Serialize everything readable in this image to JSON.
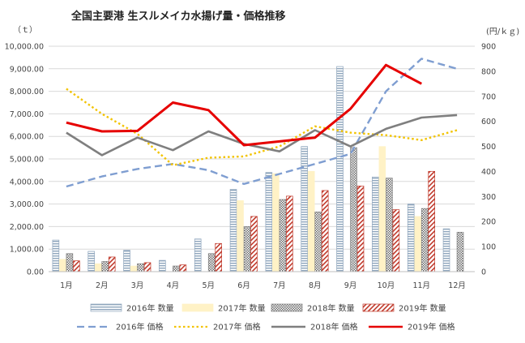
{
  "chart_data": {
    "type": "bar",
    "title": "全国主要港 生スルメイカ水揚げ量・価格推移",
    "y_left_unit": "（ｔ）",
    "y_right_unit": "(円/ｋｇ)",
    "categories": [
      "1月",
      "2月",
      "3月",
      "4月",
      "5月",
      "6月",
      "7月",
      "8月",
      "9月",
      "10月",
      "11月",
      "12月"
    ],
    "y_left_ticks": [
      "0.00",
      "1,000.00",
      "2,000.00",
      "3,000.00",
      "4,000.00",
      "5,000.00",
      "6,000.00",
      "7,000.00",
      "8,000.00",
      "9,000.00",
      "10,000.00"
    ],
    "y_right_ticks": [
      "0",
      "100",
      "200",
      "300",
      "400",
      "500",
      "600",
      "700",
      "800",
      "900"
    ],
    "ylim_left": [
      0,
      10000
    ],
    "ylim_right": [
      0,
      900
    ],
    "bar_series": [
      {
        "name": "2016年 数量",
        "color": "#8fa6bd",
        "pattern": "hstripe",
        "values": [
          1400,
          900,
          950,
          500,
          1450,
          3650,
          4400,
          5550,
          9100,
          4200,
          3000,
          1900
        ]
      },
      {
        "name": "2017年 数量",
        "color": "#fff2c6",
        "pattern": "solid",
        "values": [
          550,
          350,
          250,
          0,
          0,
          3150,
          4350,
          4450,
          0,
          5550,
          2450,
          0
        ]
      },
      {
        "name": "2018年 数量",
        "color": "#7f7f7f",
        "pattern": "cross",
        "values": [
          800,
          450,
          350,
          250,
          800,
          2000,
          3200,
          2650,
          5500,
          4150,
          2800,
          1750
        ]
      },
      {
        "name": "2019年 数量",
        "color": "#c0392b",
        "pattern": "diag",
        "values": [
          480,
          650,
          400,
          300,
          1250,
          2450,
          3350,
          3600,
          3800,
          2750,
          4450,
          null
        ]
      }
    ],
    "line_series": [
      {
        "name": "2016年 価格",
        "color": "#7f9ed1",
        "dash": "dashed",
        "values": [
          340,
          380,
          410,
          430,
          405,
          350,
          390,
          430,
          470,
          720,
          850,
          810
        ]
      },
      {
        "name": "2017年 価格",
        "color": "#f2c300",
        "dash": "dotted",
        "values": [
          730,
          630,
          550,
          425,
          455,
          460,
          500,
          580,
          555,
          545,
          525,
          565
        ]
      },
      {
        "name": "2018年 価格",
        "color": "#7f7f7f",
        "dash": "solid",
        "values": [
          555,
          465,
          535,
          485,
          560,
          510,
          480,
          565,
          500,
          570,
          615,
          625
        ]
      },
      {
        "name": "2019年 価格",
        "color": "#e60000",
        "dash": "solid",
        "values": [
          595,
          560,
          562,
          675,
          645,
          505,
          520,
          535,
          650,
          825,
          750,
          null
        ]
      }
    ]
  }
}
